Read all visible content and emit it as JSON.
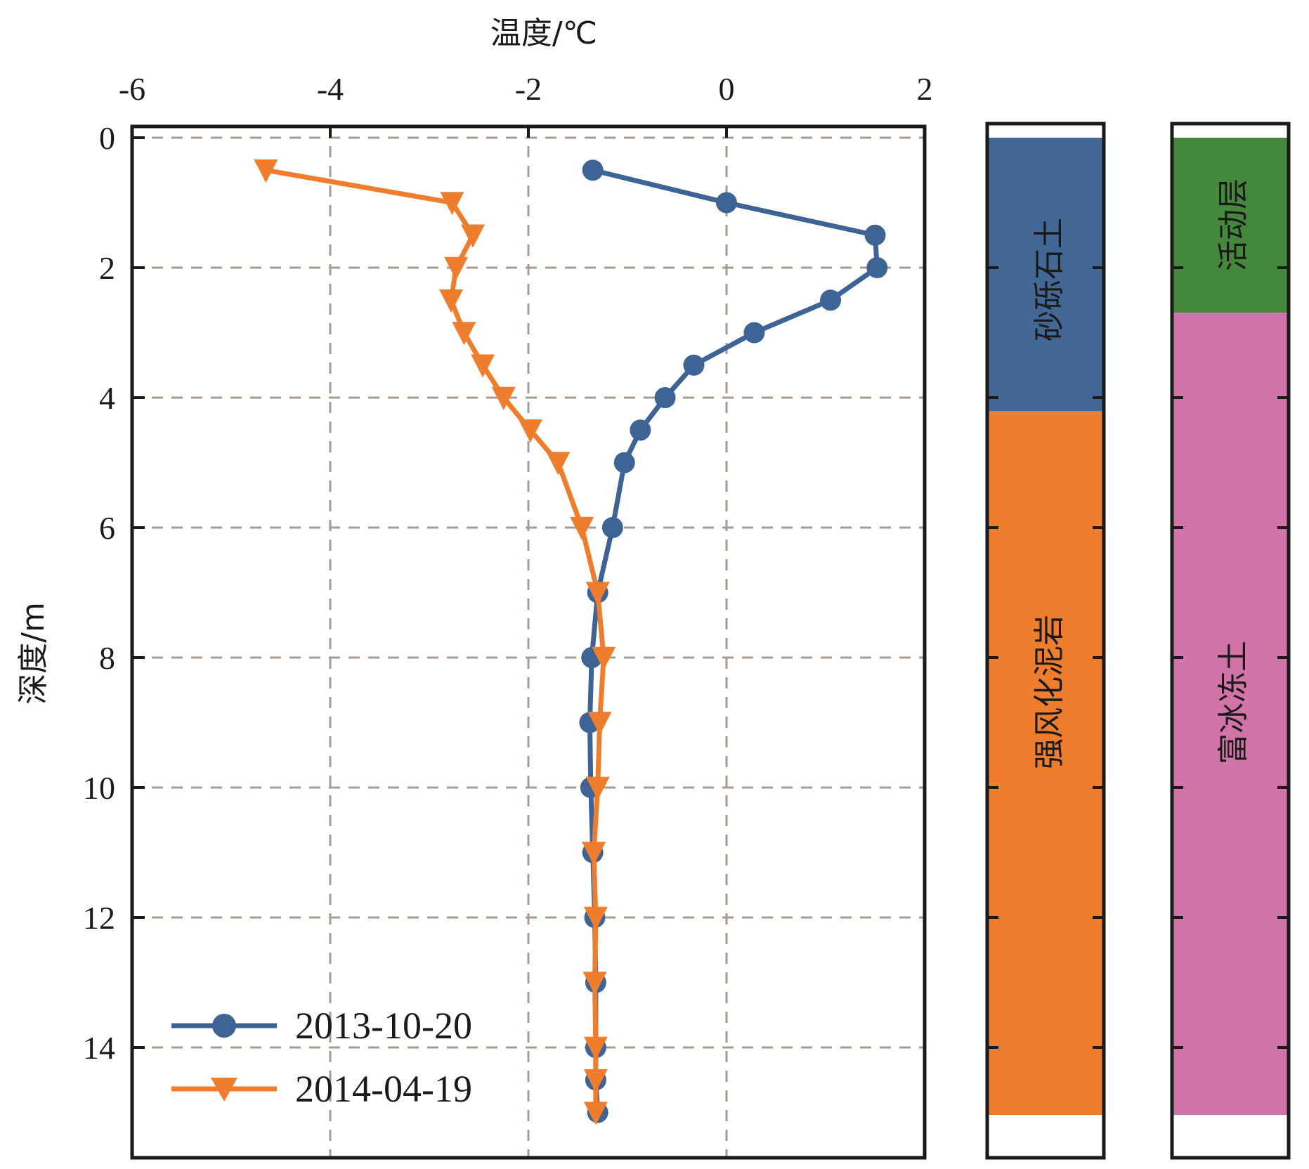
{
  "chart_data": {
    "type": "line",
    "xlabel": "温度/℃",
    "ylabel": "深度/m",
    "x_axis_position": "top",
    "y_axis_inverted": true,
    "xlim": [
      -6,
      2
    ],
    "ylim": [
      0,
      15.8
    ],
    "xticks": [
      "-6",
      "-4",
      "-2",
      "0",
      "2"
    ],
    "yticks": [
      "0",
      "2",
      "4",
      "6",
      "8",
      "10",
      "12",
      "14"
    ],
    "grid": true,
    "legend_position": "bottom-left",
    "series": [
      {
        "name": "2013-10-20",
        "color": "#3d6494",
        "marker": "circle",
        "points": [
          [
            -1.35,
            0.5
          ],
          [
            0.0,
            1.0
          ],
          [
            1.5,
            1.5
          ],
          [
            1.52,
            2.0
          ],
          [
            1.05,
            2.5
          ],
          [
            0.28,
            3.0
          ],
          [
            -0.33,
            3.5
          ],
          [
            -0.62,
            4.0
          ],
          [
            -0.87,
            4.5
          ],
          [
            -1.03,
            5.0
          ],
          [
            -1.15,
            6.0
          ],
          [
            -1.3,
            7.0
          ],
          [
            -1.36,
            8.0
          ],
          [
            -1.38,
            9.0
          ],
          [
            -1.37,
            10.0
          ],
          [
            -1.35,
            11.0
          ],
          [
            -1.33,
            12.0
          ],
          [
            -1.32,
            13.0
          ],
          [
            -1.32,
            14.0
          ],
          [
            -1.32,
            14.5
          ],
          [
            -1.3,
            15.0
          ]
        ]
      },
      {
        "name": "2014-04-19",
        "color": "#ee7d2e",
        "marker": "triangle-down",
        "points": [
          [
            -4.65,
            0.5
          ],
          [
            -2.77,
            1.0
          ],
          [
            -2.56,
            1.5
          ],
          [
            -2.73,
            2.0
          ],
          [
            -2.78,
            2.5
          ],
          [
            -2.65,
            3.0
          ],
          [
            -2.46,
            3.5
          ],
          [
            -2.25,
            4.0
          ],
          [
            -1.98,
            4.5
          ],
          [
            -1.7,
            5.0
          ],
          [
            -1.46,
            6.0
          ],
          [
            -1.3,
            7.0
          ],
          [
            -1.24,
            8.0
          ],
          [
            -1.28,
            9.0
          ],
          [
            -1.3,
            10.0
          ],
          [
            -1.34,
            11.0
          ],
          [
            -1.32,
            12.0
          ],
          [
            -1.33,
            13.0
          ],
          [
            -1.32,
            14.0
          ],
          [
            -1.32,
            14.5
          ],
          [
            -1.32,
            15.0
          ]
        ]
      }
    ]
  },
  "strata": {
    "lithology": [
      {
        "label": "砂砾石土",
        "from": 0,
        "to": 4.2,
        "color": "#446895"
      },
      {
        "label": "强风化泥岩",
        "from": 4.2,
        "to": 15.0,
        "color": "#ee7d2e"
      }
    ],
    "permafrost": [
      {
        "label": "活动层",
        "from": 0,
        "to": 2.7,
        "color": "#44883c"
      },
      {
        "label": "富冰冻土",
        "from": 2.7,
        "to": 15.0,
        "color": "#d374a8"
      }
    ]
  }
}
